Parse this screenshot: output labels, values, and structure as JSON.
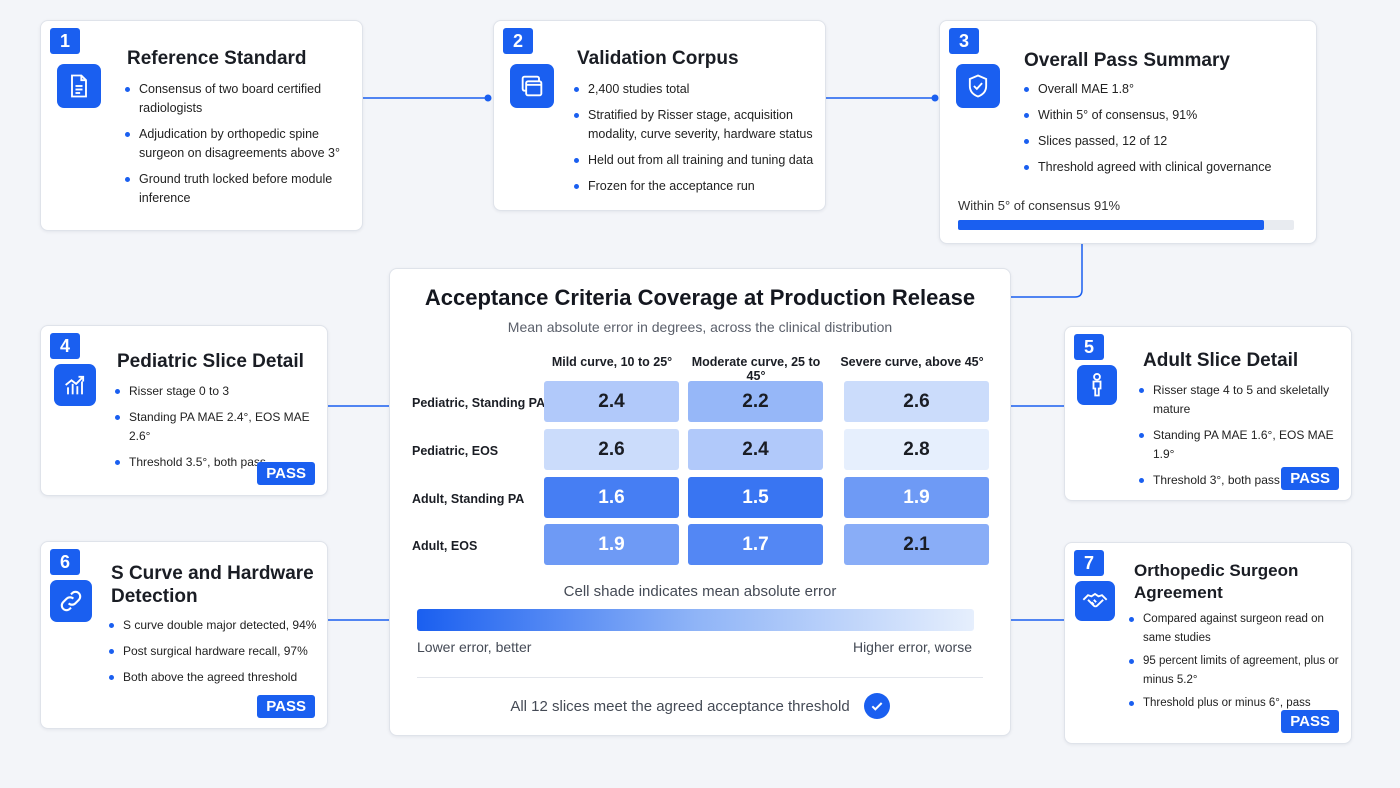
{
  "cards": {
    "reference": {
      "badge": "1",
      "title": "Reference Standard",
      "items": [
        "Consensus of two board certified radiologists",
        "Adjudication by orthopedic spine surgeon on disagreements above 3°",
        "Ground truth locked before module inference"
      ],
      "icon": "document-icon"
    },
    "corpus": {
      "badge": "2",
      "title": "Validation Corpus",
      "items": [
        "2,400 studies total",
        "Stratified by Risser stage, acquisition modality, curve severity, hardware status",
        "Held out from all training and tuning data",
        "Frozen for the acceptance run"
      ],
      "icon": "folders-icon"
    },
    "summary": {
      "badge": "3",
      "title": "Overall Pass Summary",
      "items": [
        "Overall MAE 1.8°",
        "Within 5° of consensus, 91%",
        "Slices passed, 12 of 12",
        "Threshold agreed with clinical governance"
      ],
      "icon": "shield-check-icon",
      "progress_label": "Within 5° of consensus  91%",
      "progress_value": 0.91
    },
    "pediatric": {
      "badge": "4",
      "title": "Pediatric Slice Detail",
      "items": [
        "Risser stage 0 to 3",
        "Standing PA MAE 2.4°,  EOS MAE 2.6°",
        "Threshold 3.5°, both pass"
      ],
      "pass": "PASS",
      "icon": "chart-trend-icon"
    },
    "adult": {
      "badge": "5",
      "title": "Adult Slice Detail",
      "items": [
        "Risser stage 4 to 5 and skeletally mature",
        "Standing PA MAE 1.6°, EOS MAE 1.9°",
        "Threshold 3°, both pass"
      ],
      "pass": "PASS",
      "icon": "person-icon"
    },
    "scurve": {
      "badge": "6",
      "title": "S Curve and Hardware Detection",
      "items": [
        "S curve double major detected, 94%",
        "Post surgical hardware recall, 97%",
        "Both above the agreed threshold"
      ],
      "pass": "PASS",
      "icon": "link-icon"
    },
    "surgeon": {
      "badge": "7",
      "title": "Orthopedic Surgeon Agreement",
      "items": [
        "Compared against surgeon read on same studies",
        "95 percent limits of agreement, plus or minus 5.2°",
        "Threshold plus or minus 6°, pass"
      ],
      "pass": "PASS",
      "icon": "handshake-icon"
    }
  },
  "center": {
    "title": "Acceptance Criteria Coverage at Production Release",
    "subtitle": "Mean absolute error in degrees, across the clinical distribution",
    "legend_label": "Cell shade indicates mean absolute error",
    "legend_low": "Lower error, better",
    "legend_high": "Higher error, worse",
    "footer": "All 12 slices meet the agreed acceptance threshold"
  },
  "chart_data": {
    "type": "heatmap",
    "columns": [
      "Mild curve, 10 to 25°",
      "Moderate curve, 25 to 45°",
      "Severe curve, above 45°"
    ],
    "rows": [
      "Pediatric, Standing PA",
      "Pediatric, EOS",
      "Adult, Standing PA",
      "Adult, EOS"
    ],
    "values": [
      [
        2.4,
        2.2,
        2.6
      ],
      [
        2.6,
        2.4,
        2.8
      ],
      [
        1.6,
        1.5,
        1.9
      ],
      [
        1.9,
        1.7,
        2.1
      ]
    ],
    "color_low": "#1a5ff0",
    "color_high": "#e6effd"
  }
}
